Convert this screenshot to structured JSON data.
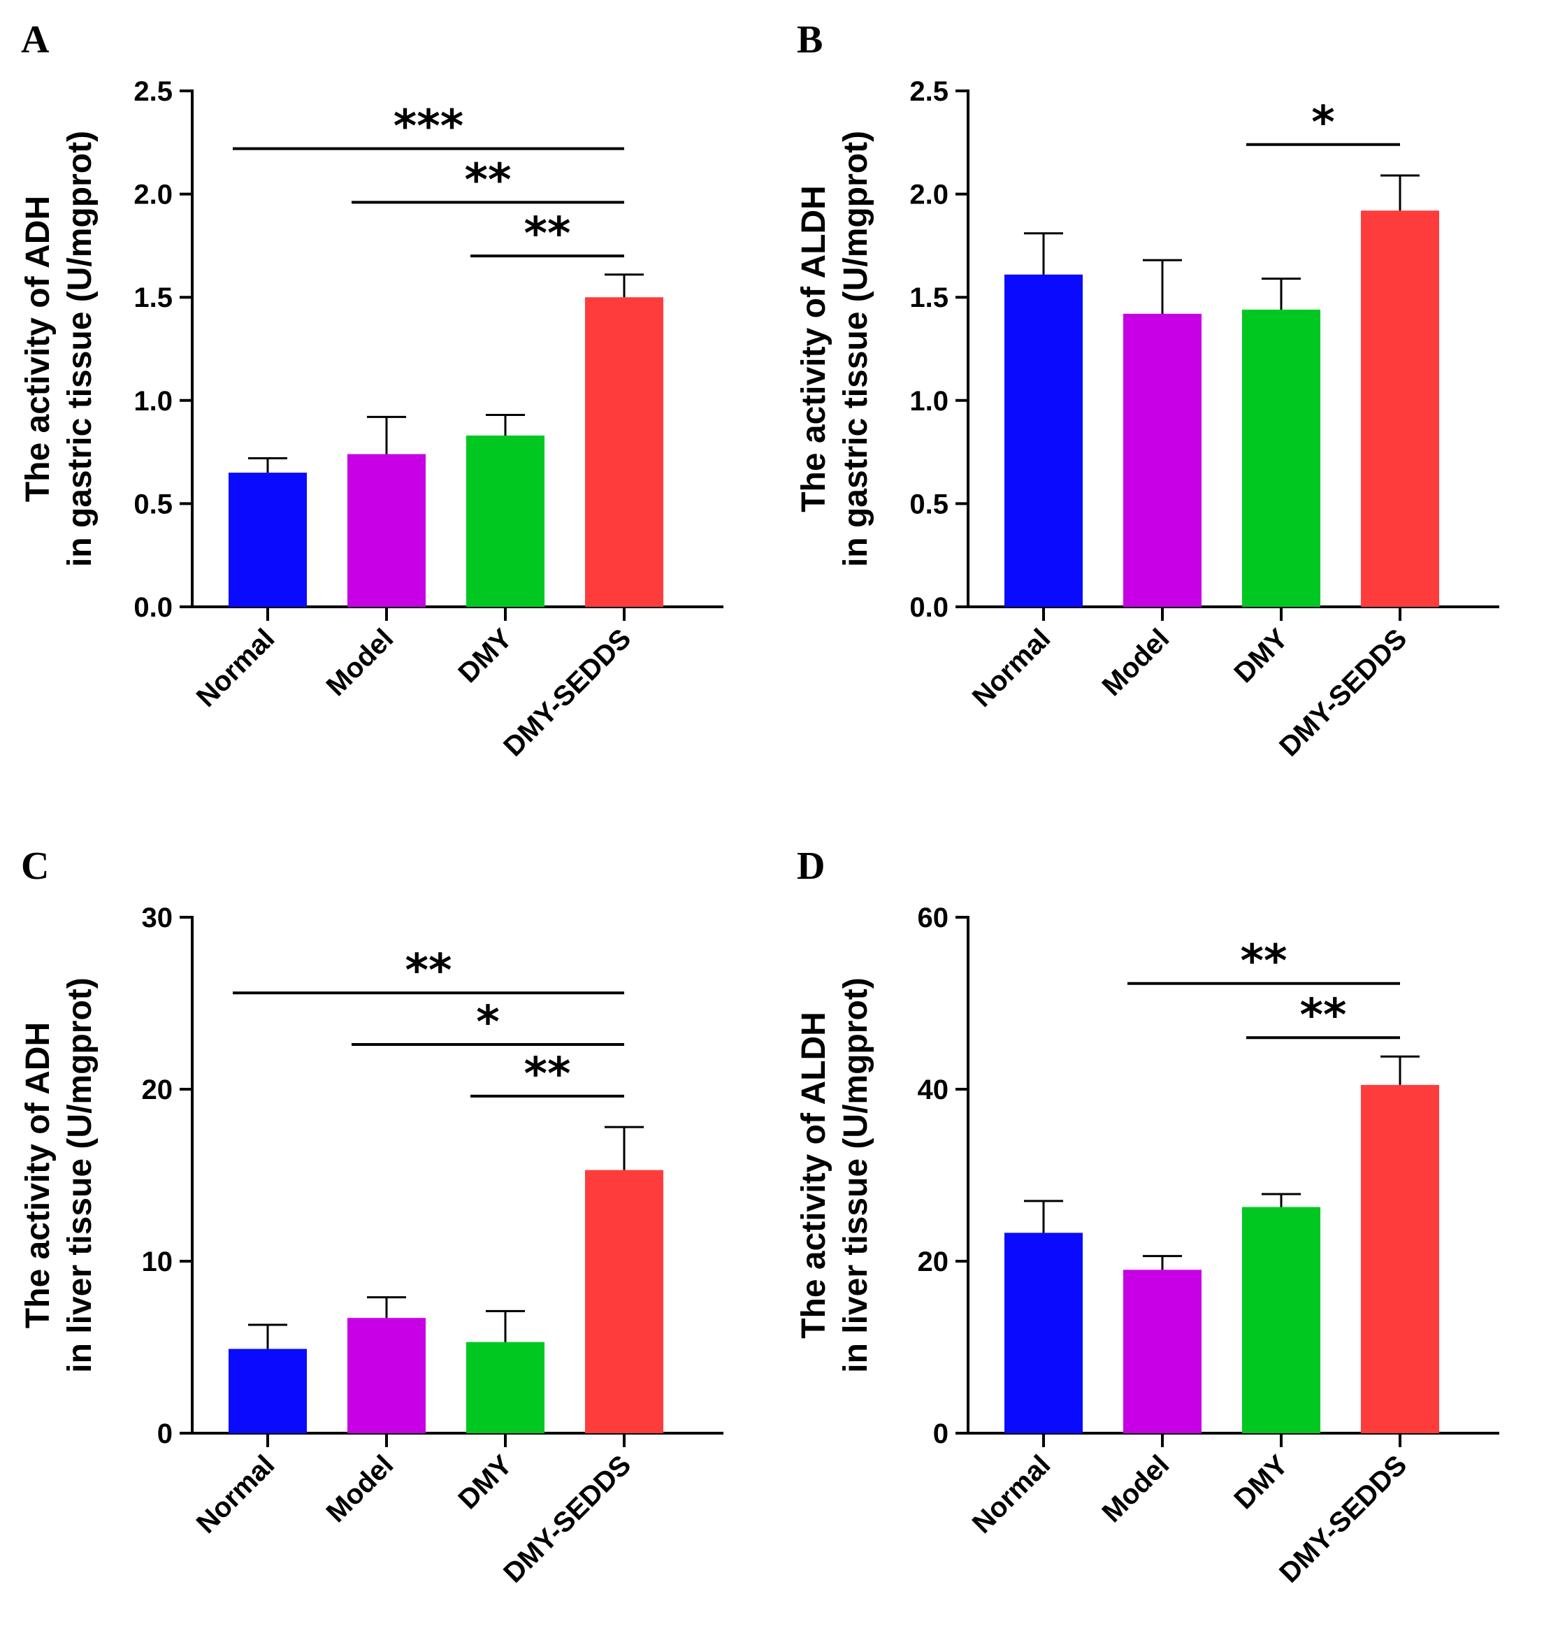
{
  "colors": {
    "Normal": "#0a0aff",
    "Model": "#c800e6",
    "DMY": "#00c820",
    "DMY-SEDDS": "#ff3c3c"
  },
  "chart_data": [
    {
      "panel": "A",
      "type": "bar",
      "categories": [
        "Normal",
        "Model",
        "DMY",
        "DMY-SEDDS"
      ],
      "values": [
        0.65,
        0.74,
        0.83,
        1.5
      ],
      "errors": [
        0.07,
        0.18,
        0.1,
        0.11
      ],
      "ylabel_line1": "The activity of ADH",
      "ylabel_line2": "in gastric tissue (U/mgprot)",
      "ylim": [
        0,
        2.5
      ],
      "yticks": [
        "0.0",
        "0.5",
        "1.0",
        "1.5",
        "2.0",
        "2.5"
      ],
      "significance": [
        {
          "from": 0,
          "to": 3,
          "y": 2.22,
          "label": "***"
        },
        {
          "from": 1,
          "to": 3,
          "y": 1.96,
          "label": "**"
        },
        {
          "from": 2,
          "to": 3,
          "y": 1.7,
          "label": "**"
        }
      ]
    },
    {
      "panel": "B",
      "type": "bar",
      "categories": [
        "Normal",
        "Model",
        "DMY",
        "DMY-SEDDS"
      ],
      "values": [
        1.61,
        1.42,
        1.44,
        1.92
      ],
      "errors": [
        0.2,
        0.26,
        0.15,
        0.17
      ],
      "ylabel_line1": "The activity of ALDH",
      "ylabel_line2": "in gastric tissue (U/mgprot)",
      "ylim": [
        0,
        2.5
      ],
      "yticks": [
        "0.0",
        "0.5",
        "1.0",
        "1.5",
        "2.0",
        "2.5"
      ],
      "significance": [
        {
          "from": 2,
          "to": 3,
          "y": 2.24,
          "label": "*"
        }
      ]
    },
    {
      "panel": "C",
      "type": "bar",
      "categories": [
        "Normal",
        "Model",
        "DMY",
        "DMY-SEDDS"
      ],
      "values": [
        4.9,
        6.7,
        5.3,
        15.3
      ],
      "errors": [
        1.4,
        1.2,
        1.8,
        2.5
      ],
      "ylabel_line1": "The activity of ADH",
      "ylabel_line2": "in liver tissue (U/mgprot)",
      "ylim": [
        0,
        30
      ],
      "yticks": [
        "0",
        "10",
        "20",
        "30"
      ],
      "significance": [
        {
          "from": 0,
          "to": 3,
          "y": 25.6,
          "label": "**"
        },
        {
          "from": 1,
          "to": 3,
          "y": 22.6,
          "label": "*"
        },
        {
          "from": 2,
          "to": 3,
          "y": 19.6,
          "label": "**"
        }
      ]
    },
    {
      "panel": "D",
      "type": "bar",
      "categories": [
        "Normal",
        "Model",
        "DMY",
        "DMY-SEDDS"
      ],
      "values": [
        23.3,
        19.0,
        26.3,
        40.5
      ],
      "errors": [
        3.7,
        1.6,
        1.5,
        3.3
      ],
      "ylabel_line1": "The activity of ALDH",
      "ylabel_line2": "in liver tissue (U/mgprot)",
      "ylim": [
        0,
        60
      ],
      "yticks": [
        "0",
        "20",
        "40",
        "60"
      ],
      "significance": [
        {
          "from": 1,
          "to": 3,
          "y": 52.3,
          "label": "**"
        },
        {
          "from": 2,
          "to": 3,
          "y": 46.0,
          "label": "**"
        }
      ]
    }
  ]
}
